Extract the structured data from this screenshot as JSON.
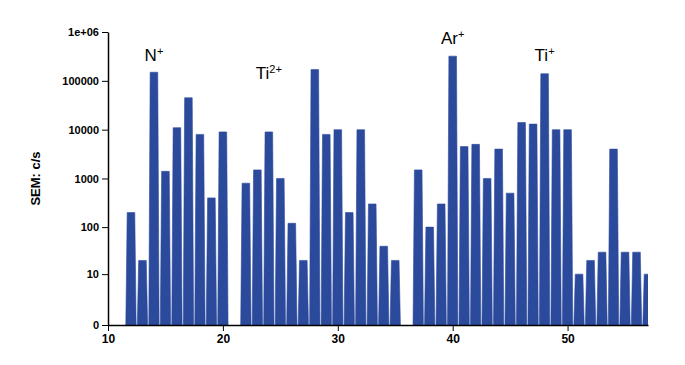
{
  "chart_data": {
    "type": "bar",
    "y_label": "SEM: c/s",
    "x": [
      12,
      13,
      14,
      15,
      16,
      17,
      18,
      19,
      20,
      22,
      23,
      24,
      25,
      26,
      27,
      28,
      29,
      30,
      31,
      32,
      33,
      34,
      35,
      37,
      38,
      39,
      40,
      41,
      42,
      43,
      44,
      45,
      46,
      47,
      48,
      49,
      50,
      51,
      52,
      53,
      54,
      55,
      56,
      57
    ],
    "values": [
      200,
      20,
      150000,
      1400,
      11000,
      45000,
      8000,
      400,
      9000,
      800,
      1500,
      9000,
      1000,
      120,
      20,
      170000,
      8000,
      10000,
      200,
      10000,
      300,
      40,
      20,
      1500,
      100,
      300,
      320000,
      4500,
      5000,
      1000,
      4000,
      500,
      14000,
      13000,
      140000,
      10000,
      10000,
      10,
      20,
      30,
      4000,
      30,
      30,
      10
    ],
    "color": "#2c4a9c",
    "xlim": [
      10,
      57
    ],
    "xticks": [
      10,
      20,
      30,
      40,
      50
    ],
    "ylim": [
      0,
      1000000
    ],
    "yticks": [
      0,
      10,
      100,
      1000,
      10000,
      100000,
      {
        "value": 1000000,
        "label": "1e+06"
      }
    ],
    "log": "y",
    "grid": false,
    "annotations": [
      {
        "text": "N",
        "superscript": "+",
        "x": 14,
        "y": 260000
      },
      {
        "text": "Ti",
        "superscript": "2+",
        "x": 24,
        "y": 110000
      },
      {
        "text": "Ar",
        "superscript": "+",
        "x": 40,
        "y": 560000
      },
      {
        "text": "Ti",
        "superscript": "+",
        "x": 48,
        "y": 260000
      }
    ]
  }
}
